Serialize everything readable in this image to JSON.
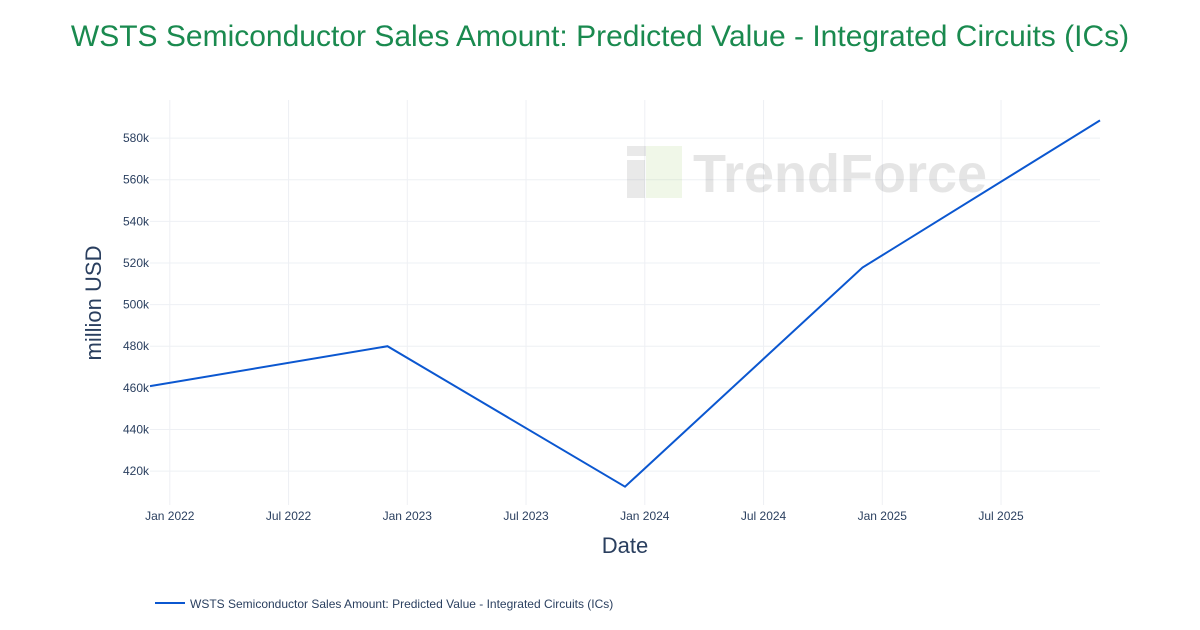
{
  "chart_data": {
    "type": "line",
    "title": "WSTS Semiconductor Sales Amount: Predicted Value - Integrated Circuits (ICs)",
    "xlabel": "Date",
    "ylabel": "million USD",
    "x": [
      "2021-12",
      "2022-12",
      "2023-12",
      "2024-12",
      "2025-12"
    ],
    "series": [
      {
        "name": "WSTS Semiconductor Sales Amount: Predicted Value - Integrated Circuits (ICs)",
        "values": [
          460800,
          480000,
          412500,
          517800,
          588500
        ],
        "color": "#0b57d0"
      }
    ],
    "x_ticks": [
      {
        "date": "2022-01",
        "label": "Jan 2022"
      },
      {
        "date": "2022-07",
        "label": "Jul 2022"
      },
      {
        "date": "2023-01",
        "label": "Jan 2023"
      },
      {
        "date": "2023-07",
        "label": "Jul 2023"
      },
      {
        "date": "2024-01",
        "label": "Jan 2024"
      },
      {
        "date": "2024-07",
        "label": "Jul 2024"
      },
      {
        "date": "2025-01",
        "label": "Jan 2025"
      },
      {
        "date": "2025-07",
        "label": "Jul 2025"
      }
    ],
    "y_ticks": [
      {
        "value": 420000,
        "label": "420k"
      },
      {
        "value": 440000,
        "label": "440k"
      },
      {
        "value": 460000,
        "label": "460k"
      },
      {
        "value": 480000,
        "label": "480k"
      },
      {
        "value": 500000,
        "label": "500k"
      },
      {
        "value": 520000,
        "label": "520k"
      },
      {
        "value": 540000,
        "label": "540k"
      },
      {
        "value": 560000,
        "label": "560k"
      },
      {
        "value": 580000,
        "label": "580k"
      }
    ],
    "xlim": [
      "2021-12",
      "2025-12"
    ],
    "ylim": [
      403700,
      598300
    ],
    "grid": true,
    "legend": "bottom-left",
    "watermark": "TrendForce"
  }
}
